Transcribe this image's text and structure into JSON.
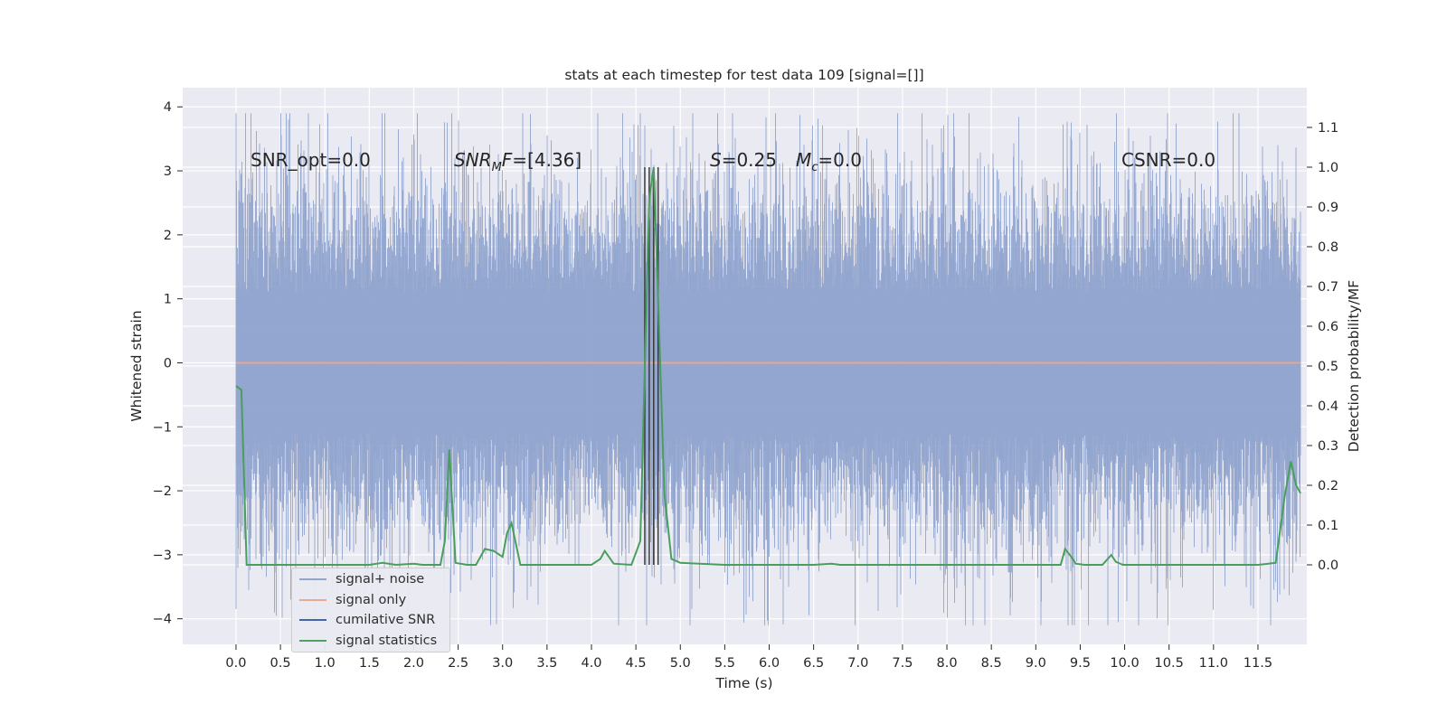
{
  "chart_data": {
    "type": "line",
    "title": "stats at each timestep for test data 109 [signal=[]]",
    "xlabel": "Time (s)",
    "ylabel": "Whitened strain",
    "y2label": "Detection probability/MF",
    "xlim": [
      -0.6,
      12.05
    ],
    "ylim": [
      -4.4,
      4.3
    ],
    "y2lim": [
      -0.2,
      1.2
    ],
    "x_ticks": [
      "0.0",
      "0.5",
      "1.0",
      "1.5",
      "2.0",
      "2.5",
      "3.0",
      "3.5",
      "4.0",
      "4.5",
      "5.0",
      "5.5",
      "6.0",
      "6.5",
      "7.0",
      "7.5",
      "8.0",
      "8.5",
      "9.0",
      "9.5",
      "10.0",
      "10.5",
      "11.0",
      "11.5"
    ],
    "y_ticks": [
      "4",
      "3",
      "2",
      "1",
      "0",
      "−1",
      "−2",
      "−3",
      "−4"
    ],
    "y2_ticks": [
      "1.1",
      "1.0",
      "0.9",
      "0.8",
      "0.7",
      "0.6",
      "0.5",
      "0.4",
      "0.3",
      "0.2",
      "0.1",
      "0.0"
    ],
    "grid": true,
    "legend_placement": "lower-left",
    "annotations": {
      "snr_opt": "SNR_opt=0.0",
      "snr_mf_prefix": "SNR",
      "snr_mf_sub": "M",
      "snr_mf_suffix": "F=[4.36]",
      "s_label": "S",
      "s_value": "=0.25",
      "mc_label": "M",
      "mc_sub": "c",
      "mc_value": "=0.0",
      "csnr": "CSNR=0.0"
    },
    "series": [
      {
        "name": "signal+ noise",
        "color": "#8ea2cc",
        "kind": "noise",
        "time_range": [
          0.0,
          11.98
        ],
        "approx_range": [
          -4.1,
          3.9
        ]
      },
      {
        "name": "signal only",
        "color": "#e8a78c",
        "kind": "constant",
        "value": 0.0
      },
      {
        "name": "cumilative SNR",
        "color": "#3c5fa3",
        "kind": "empty"
      },
      {
        "name": "signal statistics",
        "color": "#4a9e5c",
        "axis": "right",
        "x": [
          0.0,
          0.06,
          0.12,
          0.25,
          0.5,
          1.0,
          1.5,
          1.65,
          1.8,
          2.0,
          2.1,
          2.3,
          2.35,
          2.4,
          2.47,
          2.6,
          2.7,
          2.8,
          2.9,
          3.0,
          3.05,
          3.1,
          3.2,
          3.5,
          4.0,
          4.1,
          4.15,
          4.25,
          4.45,
          4.55,
          4.6,
          4.65,
          4.7,
          4.76,
          4.82,
          4.9,
          5.0,
          5.5,
          6.0,
          6.5,
          6.7,
          6.8,
          7.0,
          8.0,
          8.5,
          8.8,
          9.0,
          9.28,
          9.33,
          9.4,
          9.45,
          9.55,
          9.75,
          9.85,
          9.9,
          9.98,
          10.5,
          11.0,
          11.5,
          11.7,
          11.8,
          11.87,
          11.93,
          11.98
        ],
        "y": [
          0.45,
          0.44,
          0.0,
          0.0,
          0.0,
          0.0,
          0.0,
          0.005,
          0.0,
          0.003,
          0.0,
          0.0,
          0.06,
          0.29,
          0.005,
          0.0,
          0.0,
          0.04,
          0.035,
          0.02,
          0.08,
          0.105,
          0.0,
          0.0,
          0.0,
          0.015,
          0.035,
          0.003,
          0.0,
          0.06,
          0.5,
          0.92,
          1.0,
          0.6,
          0.18,
          0.015,
          0.005,
          0.0,
          0.0,
          0.0,
          0.003,
          0.0,
          0.0,
          0.0,
          0.0,
          0.0,
          0.0,
          0.0,
          0.04,
          0.02,
          0.003,
          0.0,
          0.0,
          0.025,
          0.008,
          0.0,
          0.0,
          0.0,
          0.0,
          0.005,
          0.17,
          0.26,
          0.2,
          0.18
        ]
      }
    ],
    "vertical_lines_x": [
      4.6,
      4.65,
      4.7,
      4.75
    ]
  },
  "colors": {
    "axes_bg": "#eaeaf2",
    "grid": "#ffffff",
    "text": "#262626",
    "vline": "#3a3a3a"
  }
}
